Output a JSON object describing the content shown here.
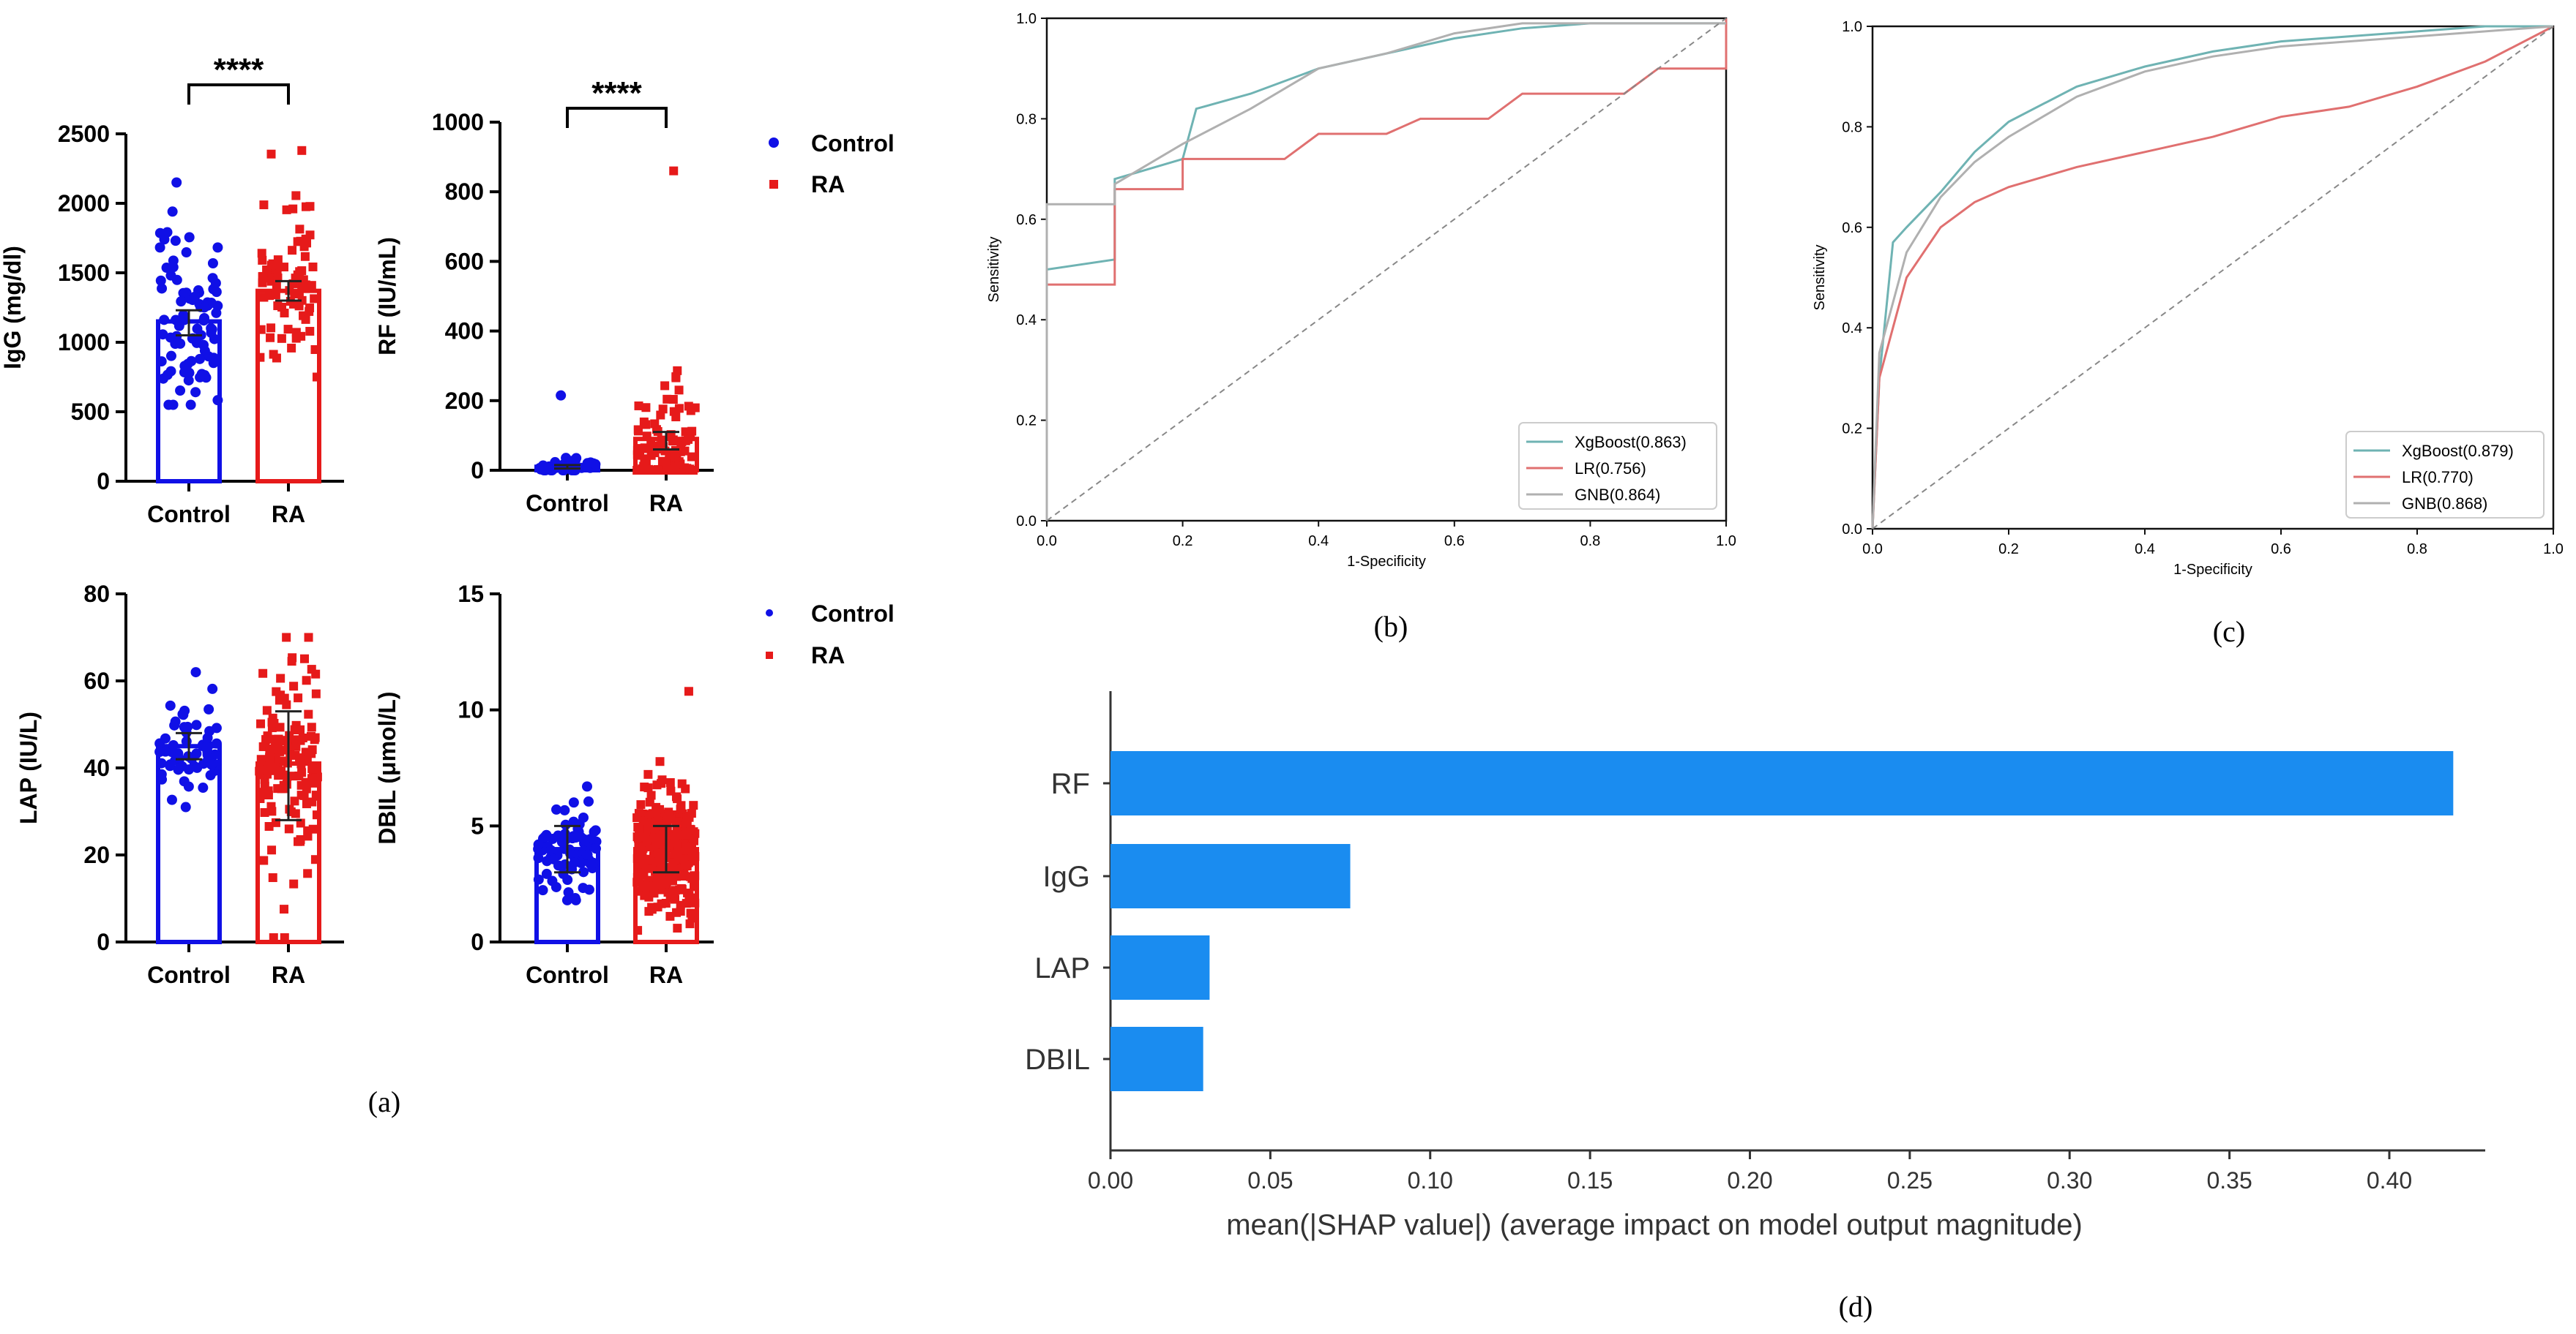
{
  "colors": {
    "control": "#1010e6",
    "ra": "#e61a1a",
    "xgboost": "#6fb3b3",
    "lr": "#e07070",
    "gnb": "#b0b0b0",
    "shap": "#1a8cf0",
    "diag": "#888888"
  },
  "panel_labels": {
    "a": "(a)",
    "b": "(b)",
    "c": "(c)",
    "d": "(d)"
  },
  "legends": [
    {
      "control": "Control",
      "ra": "RA"
    },
    {
      "control": "Control",
      "ra": "RA"
    }
  ],
  "chart_data": [
    {
      "id": "igg",
      "type": "bar",
      "title": "",
      "ylabel": "IgG (mg/dl)",
      "categories": [
        "Control",
        "RA"
      ],
      "values": [
        1150,
        1370
      ],
      "error": [
        [
          1050,
          1230
        ],
        [
          1300,
          1440
        ]
      ],
      "ylim": [
        0,
        2500
      ],
      "yticks": [
        0,
        500,
        1000,
        1500,
        2000,
        2500
      ],
      "yticklabels": [
        "0",
        "500",
        "1000",
        "1500",
        "2000",
        "2500"
      ],
      "significance": "****",
      "points": {
        "n": [
          90,
          80
        ],
        "center": [
          1150,
          1370
        ],
        "spread": [
          350,
          330
        ],
        "min": [
          550,
          750
        ],
        "max": [
          2150,
          2380
        ]
      }
    },
    {
      "id": "rf",
      "type": "bar",
      "title": "",
      "ylabel": "RF (IU/mL)",
      "categories": [
        "Control",
        "RA"
      ],
      "values": [
        10,
        90
      ],
      "error": [
        [
          5,
          15
        ],
        [
          60,
          110
        ]
      ],
      "ylim": [
        0,
        1000
      ],
      "yticks": [
        0,
        200,
        400,
        600,
        800,
        1000
      ],
      "yticklabels": [
        "0",
        "200",
        "400",
        "600",
        "800",
        "1000"
      ],
      "significance": "****",
      "points": {
        "n": [
          35,
          120
        ],
        "center": [
          8,
          40
        ],
        "spread": [
          15,
          80
        ],
        "min": [
          0,
          0
        ],
        "max": [
          215,
          860
        ]
      }
    },
    {
      "id": "lap",
      "type": "bar",
      "title": "",
      "ylabel": "LAP (IU/L)",
      "categories": [
        "Control",
        "RA"
      ],
      "values": [
        45,
        41
      ],
      "error": [
        [
          42,
          48
        ],
        [
          28,
          53
        ]
      ],
      "ylim": [
        0,
        80
      ],
      "yticks": [
        0,
        20,
        40,
        60,
        80
      ],
      "yticklabels": [
        "0",
        "20",
        "40",
        "60",
        "80"
      ],
      "significance": "",
      "points": {
        "n": [
          60,
          150
        ],
        "center": [
          44,
          41
        ],
        "spread": [
          5,
          12
        ],
        "min": [
          31,
          1
        ],
        "max": [
          62,
          70
        ]
      }
    },
    {
      "id": "dbil",
      "type": "bar",
      "title": "",
      "ylabel": "DBIL (μmol/L)",
      "categories": [
        "Control",
        "RA"
      ],
      "values": [
        4.0,
        4.0
      ],
      "error": [
        [
          3.0,
          5.0
        ],
        [
          3.0,
          5.0
        ]
      ],
      "ylim": [
        0,
        15
      ],
      "yticks": [
        0,
        5,
        10,
        15
      ],
      "yticklabels": [
        "0",
        "5",
        "10",
        "15"
      ],
      "significance": "",
      "points": {
        "n": [
          80,
          300
        ],
        "center": [
          4.0,
          4.0
        ],
        "spread": [
          1.0,
          1.3
        ],
        "min": [
          1.8,
          0.5
        ],
        "max": [
          6.7,
          10.8
        ]
      }
    },
    {
      "id": "roc_b",
      "type": "line",
      "title": "",
      "xlabel": "1-Specificity",
      "ylabel": "Sensitivity",
      "xlim": [
        0,
        1
      ],
      "ylim": [
        0,
        1
      ],
      "xticklabels": [
        "0.0",
        "0.2",
        "0.4",
        "0.6",
        "0.8",
        "1.0"
      ],
      "yticklabels": [
        "0.0",
        "0.2",
        "0.4",
        "0.6",
        "0.8",
        "1.0"
      ],
      "legend_position": "bottom-right",
      "series": [
        {
          "name": "XgBoost(0.863)",
          "color": "#6fb3b3",
          "x": [
            0,
            0,
            0.1,
            0.1,
            0.2,
            0.22,
            0.3,
            0.4,
            0.5,
            0.6,
            0.7,
            0.8,
            1.0
          ],
          "y": [
            0,
            0.5,
            0.52,
            0.68,
            0.72,
            0.82,
            0.85,
            0.9,
            0.93,
            0.96,
            0.98,
            0.99,
            0.99
          ]
        },
        {
          "name": "LR(0.756)",
          "color": "#e07070",
          "x": [
            0,
            0,
            0.1,
            0.1,
            0.2,
            0.2,
            0.35,
            0.4,
            0.5,
            0.55,
            0.65,
            0.7,
            0.85,
            0.9,
            1.0,
            1.0
          ],
          "y": [
            0,
            0.47,
            0.47,
            0.66,
            0.66,
            0.72,
            0.72,
            0.77,
            0.77,
            0.8,
            0.8,
            0.85,
            0.85,
            0.9,
            0.9,
            1.0
          ]
        },
        {
          "name": "GNB(0.864)",
          "color": "#b0b0b0",
          "x": [
            0,
            0,
            0.1,
            0.1,
            0.2,
            0.3,
            0.4,
            0.5,
            0.6,
            0.7,
            1.0
          ],
          "y": [
            0,
            0.63,
            0.63,
            0.67,
            0.75,
            0.82,
            0.9,
            0.93,
            0.97,
            0.99,
            0.99
          ]
        },
        {
          "name": "",
          "color": "#888888",
          "dashed": true,
          "x": [
            0,
            1
          ],
          "y": [
            0,
            1
          ]
        }
      ]
    },
    {
      "id": "roc_c",
      "type": "line",
      "title": "",
      "xlabel": "1-Specificity",
      "ylabel": "Sensitivity",
      "xlim": [
        0,
        1
      ],
      "ylim": [
        0,
        1
      ],
      "xticklabels": [
        "0.0",
        "0.2",
        "0.4",
        "0.6",
        "0.8",
        "1.0"
      ],
      "yticklabels": [
        "0.0",
        "0.2",
        "0.4",
        "0.6",
        "0.8",
        "1.0"
      ],
      "legend_position": "bottom-right",
      "series": [
        {
          "name": "XgBoost(0.879)",
          "color": "#6fb3b3",
          "x": [
            0,
            0.01,
            0.03,
            0.05,
            0.1,
            0.15,
            0.2,
            0.3,
            0.4,
            0.5,
            0.6,
            0.7,
            0.8,
            0.9,
            1.0
          ],
          "y": [
            0,
            0.3,
            0.57,
            0.6,
            0.67,
            0.75,
            0.81,
            0.88,
            0.92,
            0.95,
            0.97,
            0.98,
            0.99,
            1.0,
            1.0
          ]
        },
        {
          "name": "LR(0.770)",
          "color": "#e07070",
          "x": [
            0,
            0.01,
            0.03,
            0.05,
            0.1,
            0.15,
            0.2,
            0.3,
            0.4,
            0.5,
            0.6,
            0.7,
            0.8,
            0.9,
            1.0
          ],
          "y": [
            0,
            0.3,
            0.4,
            0.5,
            0.6,
            0.65,
            0.68,
            0.72,
            0.75,
            0.78,
            0.82,
            0.84,
            0.88,
            0.93,
            1.0
          ]
        },
        {
          "name": "GNB(0.868)",
          "color": "#b0b0b0",
          "x": [
            0,
            0.01,
            0.03,
            0.05,
            0.1,
            0.15,
            0.2,
            0.3,
            0.4,
            0.5,
            0.6,
            0.7,
            0.8,
            0.9,
            1.0
          ],
          "y": [
            0,
            0.35,
            0.45,
            0.55,
            0.66,
            0.73,
            0.78,
            0.86,
            0.91,
            0.94,
            0.96,
            0.97,
            0.98,
            0.99,
            1.0
          ]
        },
        {
          "name": "",
          "color": "#888888",
          "dashed": true,
          "x": [
            0,
            1
          ],
          "y": [
            0,
            1
          ]
        }
      ]
    },
    {
      "id": "shap",
      "type": "bar",
      "orientation": "horizontal",
      "title": "",
      "xlabel": "mean(|SHAP value|) (average impact on model output magnitude)",
      "categories": [
        "RF",
        "IgG",
        "LAP",
        "DBIL"
      ],
      "values": [
        0.42,
        0.075,
        0.031,
        0.029
      ],
      "xlim": [
        0,
        0.43
      ],
      "xticks": [
        0,
        0.05,
        0.1,
        0.15,
        0.2,
        0.25,
        0.3,
        0.35,
        0.4
      ],
      "xticklabels": [
        "0.00",
        "0.05",
        "0.10",
        "0.15",
        "0.20",
        "0.25",
        "0.30",
        "0.35",
        "0.40"
      ]
    }
  ]
}
